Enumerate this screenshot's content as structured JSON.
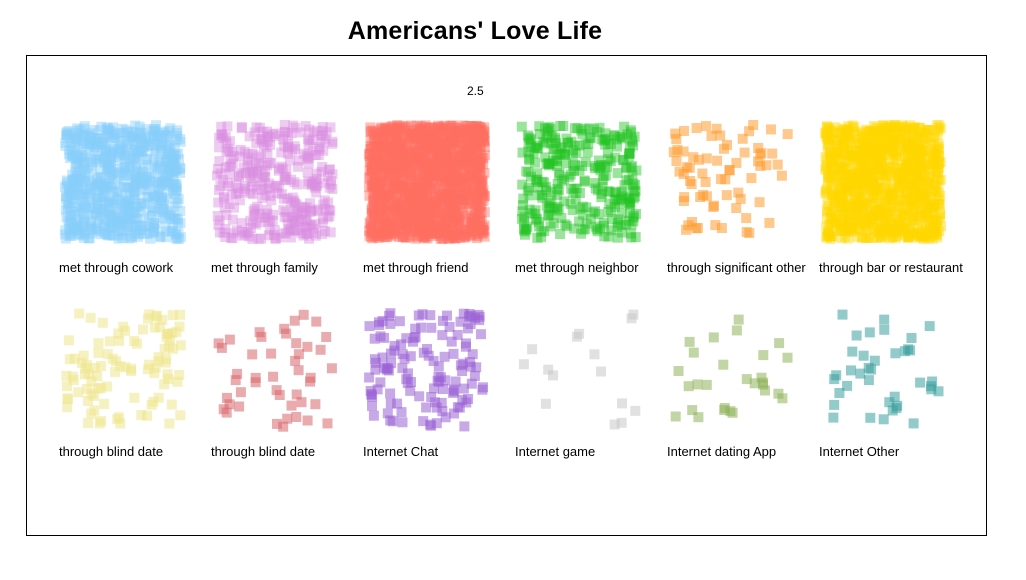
{
  "title": "Americans' Love Life",
  "scale_label": "2.5",
  "chart_data": {
    "type": "scatter",
    "title": "Americans' Love Life",
    "annotation": "2.5",
    "xlim": [
      0,
      1
    ],
    "ylim": [
      0,
      1
    ],
    "grid": false,
    "marker": "square",
    "panels": [
      {
        "label": "met through cowork",
        "color": "#87CEFA",
        "count": 700
      },
      {
        "label": "met through family",
        "color": "#DA8FE0",
        "count": 330
      },
      {
        "label": "met through friend",
        "color": "#FF6F61",
        "count": 1400
      },
      {
        "label": "met through neighbor",
        "color": "#22C422",
        "count": 300
      },
      {
        "label": "through significant other",
        "color": "#FF9A2E",
        "count": 70
      },
      {
        "label": "through bar or restaurant",
        "color": "#FFD700",
        "count": 1000
      },
      {
        "label": "through blind date",
        "color": "#EEE68C",
        "count": 100
      },
      {
        "label": "through blind date",
        "color": "#D9666C",
        "count": 45
      },
      {
        "label": "Internet Chat",
        "color": "#9A63D6",
        "count": 130
      },
      {
        "label": "Internet game",
        "color": "#C8C8C8",
        "count": 15
      },
      {
        "label": "Internet dating App",
        "color": "#8FB35A",
        "count": 28
      },
      {
        "label": "Internet Other",
        "color": "#3A9E9E",
        "count": 38
      }
    ]
  }
}
